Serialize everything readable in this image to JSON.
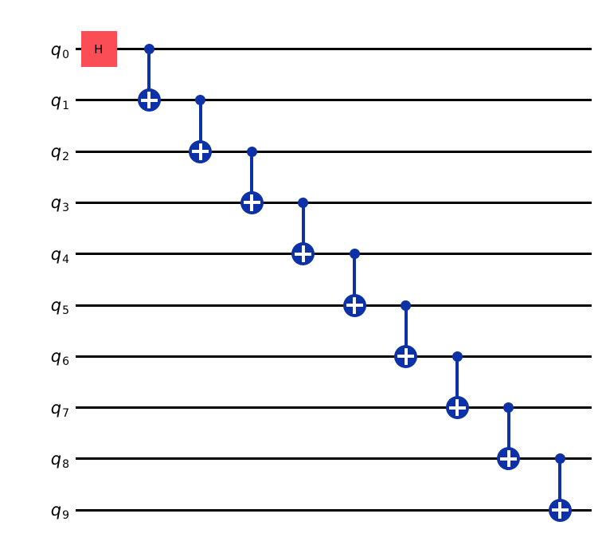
{
  "figure": {
    "background": "#ffffff",
    "wire_color": "#000000"
  },
  "circuit": {
    "qubits": [
      {
        "name": "q0",
        "base": "q",
        "sub": "0"
      },
      {
        "name": "q1",
        "base": "q",
        "sub": "1"
      },
      {
        "name": "q2",
        "base": "q",
        "sub": "2"
      },
      {
        "name": "q3",
        "base": "q",
        "sub": "3"
      },
      {
        "name": "q4",
        "base": "q",
        "sub": "4"
      },
      {
        "name": "q5",
        "base": "q",
        "sub": "5"
      },
      {
        "name": "q6",
        "base": "q",
        "sub": "6"
      },
      {
        "name": "q7",
        "base": "q",
        "sub": "7"
      },
      {
        "name": "q8",
        "base": "q",
        "sub": "8"
      },
      {
        "name": "q9",
        "base": "q",
        "sub": "9"
      }
    ],
    "gates": {
      "hadamard": {
        "label": "H",
        "qubit": 0,
        "fill": "#FA4D56",
        "text_color": "#000000"
      },
      "cnot_fill": "#0D32A8",
      "cnot_symbol": "+",
      "cnots": [
        {
          "control": 0,
          "target": 1
        },
        {
          "control": 1,
          "target": 2
        },
        {
          "control": 2,
          "target": 3
        },
        {
          "control": 3,
          "target": 4
        },
        {
          "control": 4,
          "target": 5
        },
        {
          "control": 5,
          "target": 6
        },
        {
          "control": 6,
          "target": 7
        },
        {
          "control": 7,
          "target": 8
        },
        {
          "control": 8,
          "target": 9
        }
      ]
    }
  }
}
